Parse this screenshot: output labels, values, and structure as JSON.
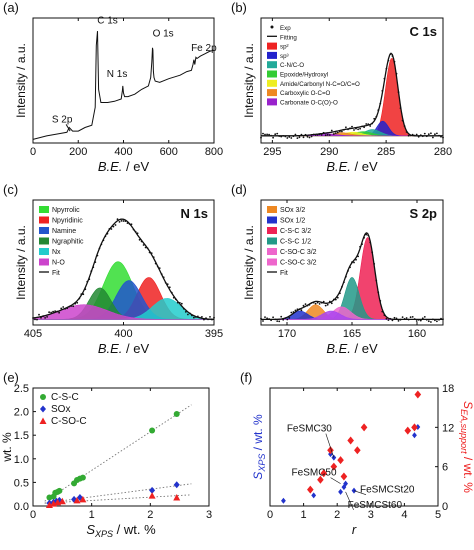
{
  "chart_data": [
    {
      "id": "a",
      "type": "line",
      "panel_label": "(a)",
      "xlabel_pre": "B.E.",
      "xlabel_post": " / eV",
      "ylabel": "Intensity / a.u.",
      "xlim": [
        0,
        800
      ],
      "xticks": [
        0,
        200,
        400,
        600,
        800
      ],
      "series": [
        {
          "x": [
            0,
            60,
            120,
            150,
            160,
            175,
            200,
            230,
            260,
            275,
            280,
            285,
            290,
            300,
            330,
            360,
            390,
            395,
            397,
            400,
            405,
            420,
            450,
            480,
            510,
            520,
            525,
            528,
            530,
            532,
            535,
            540,
            560,
            600,
            650,
            680,
            700,
            707,
            711,
            715,
            720,
            725,
            740,
            760,
            780,
            800
          ],
          "y": [
            0.03,
            0.06,
            0.08,
            0.09,
            0.13,
            0.1,
            0.1,
            0.13,
            0.15,
            0.3,
            0.82,
            0.94,
            0.45,
            0.34,
            0.34,
            0.35,
            0.37,
            0.44,
            0.48,
            0.42,
            0.39,
            0.39,
            0.41,
            0.45,
            0.48,
            0.55,
            0.68,
            0.8,
            0.78,
            0.6,
            0.55,
            0.52,
            0.51,
            0.54,
            0.57,
            0.6,
            0.61,
            0.66,
            0.7,
            0.66,
            0.72,
            0.71,
            0.73,
            0.75,
            0.77,
            0.78
          ]
        }
      ],
      "annotations": [
        {
          "text": "C 1s",
          "x": 285,
          "y": 0.97
        },
        {
          "text": "O 1s",
          "x": 531,
          "y": 0.86
        },
        {
          "text": "N 1s",
          "x": 398,
          "y": 0.52
        },
        {
          "text": "Fe 2p",
          "x": 711,
          "y": 0.74
        },
        {
          "text": "S 2p",
          "x": 164,
          "y": 0.14
        }
      ]
    },
    {
      "id": "b",
      "type": "line",
      "panel_label": "(b)",
      "title": "C 1s",
      "xlabel_pre": "B.E.",
      "xlabel_post": " / eV",
      "ylabel": "Intensity / a.u.",
      "xlim": [
        296,
        280
      ],
      "xticks": [
        295,
        290,
        285,
        280
      ],
      "components": [
        {
          "name": "sp²",
          "color": "#ee2222",
          "center": 284.5,
          "height": 0.74,
          "width": 0.55
        },
        {
          "name": "sp³",
          "color": "#2222cc",
          "center": 285.3,
          "height": 0.14,
          "width": 0.5
        },
        {
          "name": "C-N/C-O",
          "color": "#22aa99",
          "center": 286.2,
          "height": 0.06,
          "width": 0.7
        },
        {
          "name": "Epoxide/Hydroxyl",
          "color": "#33cc33",
          "center": 287.0,
          "height": 0.04,
          "width": 0.8
        },
        {
          "name": "Amide/Carbonyl N-C=O/C=O",
          "color": "#eeee22",
          "center": 287.9,
          "height": 0.035,
          "width": 0.8
        },
        {
          "name": "Carboxylic O-C=O",
          "color": "#ee8822",
          "center": 288.9,
          "height": 0.03,
          "width": 0.8
        },
        {
          "name": "Carbonate O-C(O)-O",
          "color": "#9922cc",
          "center": 290.4,
          "height": 0.02,
          "width": 1.0
        }
      ],
      "background": 0.06,
      "legend": [
        "Exp",
        "Fitting",
        "sp²",
        "sp³",
        "C-N/C-O",
        "Epoxide/Hydroxyl",
        "Amide/Carbonyl N-C=O/C=O",
        "Carboxylic O-C=O",
        "Carbonate O-C(O)-O"
      ]
    },
    {
      "id": "c",
      "type": "line",
      "panel_label": "(c)",
      "title": "N 1s",
      "xlabel_pre": "B.E.",
      "xlabel_post": " / eV",
      "ylabel": "Intensity / a.u.",
      "xlim": [
        405,
        395
      ],
      "xticks": [
        405,
        400,
        395
      ],
      "components": [
        {
          "name": "Npyrrolic",
          "color": "#33dd33",
          "center": 400.3,
          "height": 0.55,
          "width": 0.8
        },
        {
          "name": "Npyridinic",
          "color": "#ee2222",
          "center": 398.6,
          "height": 0.4,
          "width": 0.65
        },
        {
          "name": "Namine",
          "color": "#2255cc",
          "center": 399.7,
          "height": 0.37,
          "width": 0.7
        },
        {
          "name": "Ngraphitic",
          "color": "#228833",
          "center": 401.3,
          "height": 0.3,
          "width": 0.6
        },
        {
          "name": "Nx",
          "color": "#22cccc",
          "center": 397.6,
          "height": 0.2,
          "width": 0.8
        },
        {
          "name": "N-O",
          "color": "#cc44cc",
          "center": 402.2,
          "height": 0.14,
          "width": 1.3
        }
      ],
      "legend": [
        "Npyrrolic",
        "Npyridinic",
        "Namine",
        "Ngraphitic",
        "Nx",
        "N-O",
        "Fit"
      ]
    },
    {
      "id": "d",
      "type": "line",
      "panel_label": "(d)",
      "title": "S 2p",
      "xlabel_pre": "B.E.",
      "xlabel_post": " / eV",
      "ylabel": "Intensity / a.u.",
      "xlim": [
        172,
        158
      ],
      "xticks": [
        170,
        165,
        160
      ],
      "components": [
        {
          "name": "SOx 3/2",
          "color": "#ee8822",
          "center": 167.8,
          "height": 0.14,
          "width": 0.6
        },
        {
          "name": "SOx 1/2",
          "color": "#2233cc",
          "center": 169.0,
          "height": 0.08,
          "width": 0.6
        },
        {
          "name": "C-S-C 3/2",
          "color": "#ee2255",
          "center": 163.8,
          "height": 0.78,
          "width": 0.55
        },
        {
          "name": "C-S-C 1/2",
          "color": "#229988",
          "center": 165.0,
          "height": 0.4,
          "width": 0.55
        },
        {
          "name": "C-SO-C 3/2",
          "color": "#ee66cc",
          "center": 165.8,
          "height": 0.12,
          "width": 0.7
        },
        {
          "name": "C-SO-C 3/2",
          "color": "#aa44ee",
          "center": 166.6,
          "height": 0.08,
          "width": 0.7
        }
      ],
      "legend": [
        "SOx 3/2",
        "SOx 1/2",
        "C-S-C 3/2",
        "C-S-C 1/2",
        "C-SO-C 3/2",
        "C-SO-C 3/2",
        "Fit"
      ]
    },
    {
      "id": "e",
      "type": "scatter",
      "panel_label": "(e)",
      "xlabel_pre": "S",
      "xlabel_sub": "XPS",
      "xlabel_post": " / wt. %",
      "ylabel": "wt. %",
      "xlim": [
        0,
        3
      ],
      "ylim": [
        0,
        2.5
      ],
      "xticks": [
        0,
        1,
        2,
        3
      ],
      "yticks": [
        0,
        0.5,
        1.0,
        1.5,
        2.0,
        2.5
      ],
      "grid": false,
      "legend_position": "top-left",
      "series": [
        {
          "name": "C-S-C",
          "marker": "circle",
          "color": "#33aa33",
          "x": [
            0.28,
            0.35,
            0.38,
            0.42,
            0.45,
            0.7,
            0.75,
            0.8,
            0.85,
            2.03,
            2.45
          ],
          "y": [
            0.18,
            0.2,
            0.28,
            0.3,
            0.32,
            0.48,
            0.55,
            0.58,
            0.6,
            1.6,
            1.95
          ]
        },
        {
          "name": "SOx",
          "marker": "diamond",
          "color": "#2233cc",
          "x": [
            0.28,
            0.35,
            0.4,
            0.45,
            0.7,
            0.8,
            2.03,
            2.45
          ],
          "y": [
            0.06,
            0.08,
            0.1,
            0.12,
            0.14,
            0.18,
            0.33,
            0.45
          ]
        },
        {
          "name": "C-SO-C",
          "marker": "triangle",
          "color": "#ee2222",
          "x": [
            0.28,
            0.35,
            0.42,
            0.5,
            0.75,
            0.85,
            2.03,
            2.45
          ],
          "y": [
            0.02,
            0.05,
            0.08,
            0.1,
            0.12,
            0.14,
            0.22,
            0.18
          ]
        }
      ]
    },
    {
      "id": "f",
      "type": "scatter",
      "panel_label": "(f)",
      "xlabel": "r",
      "ylabel_left_pre": "S",
      "ylabel_left_sub": "XPS",
      "ylabel_left_post": " / wt. %",
      "ylabel_right_pre": "S",
      "ylabel_right_sub": "EA,support",
      "ylabel_right_post": " / wt. %",
      "xlim": [
        0,
        5
      ],
      "xticks": [
        0,
        1,
        2,
        3,
        4,
        5
      ],
      "ylim_right": [
        0,
        18
      ],
      "yticks_right": [
        0,
        6,
        12,
        18
      ],
      "left_ylim": [
        0,
        5
      ],
      "series": [
        {
          "name": "S_XPS",
          "axis": "left",
          "marker": "diamond-small",
          "color": "#2233cc",
          "x": [
            0.4,
            1.3,
            1.8,
            1.9,
            2.1,
            2.2,
            2.25,
            2.5,
            4.3,
            4.4
          ],
          "y": [
            0.22,
            0.45,
            2.2,
            2.05,
            0.6,
            0.8,
            0.95,
            0.65,
            3.0,
            3.35
          ]
        },
        {
          "name": "S_EA,support",
          "axis": "right",
          "marker": "diamond-large",
          "color": "#ee2222",
          "x": [
            1.2,
            1.5,
            1.6,
            1.8,
            1.9,
            2.1,
            2.2,
            2.4,
            2.6,
            2.8,
            4.1,
            4.3,
            4.4
          ],
          "y": [
            2.5,
            4.0,
            5.0,
            8.5,
            6.0,
            7.0,
            4.5,
            10.0,
            8.5,
            12.0,
            11.5,
            12.0,
            17.0
          ]
        }
      ],
      "annotations": [
        {
          "text": "FeSMC30",
          "x": 1.9,
          "y": 2.05
        },
        {
          "text": "FeSMC50",
          "x": 2.1,
          "y": 0.95
        },
        {
          "text": "FeSMCSt20",
          "x": 2.5,
          "y": 0.65
        },
        {
          "text": "FeSMCSt60",
          "x": 2.25,
          "y": 0.6
        }
      ]
    }
  ]
}
